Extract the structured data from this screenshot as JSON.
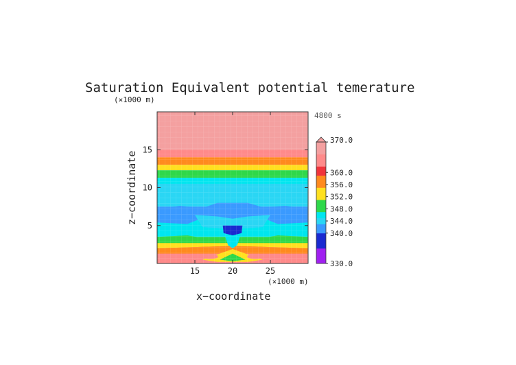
{
  "chart_data": {
    "type": "heatmap",
    "title": "Saturation Equivalent potential temerature",
    "time_label": "4800 s",
    "xlabel": "x−coordinate",
    "ylabel": "z−coordinate",
    "x_unit": "(×1000 m)",
    "z_unit": "(×1000 m)",
    "x_range": [
      10,
      30
    ],
    "z_range": [
      0,
      20
    ],
    "x_ticks": [
      15,
      20,
      25
    ],
    "z_ticks": [
      5,
      10,
      15
    ],
    "colorbar": {
      "min": 330,
      "max": 370,
      "labels": [
        "370.0",
        "360.0",
        "356.0",
        "352.0",
        "348.0",
        "344.0",
        "340.0",
        "330.0"
      ],
      "label_values": [
        370,
        360,
        356,
        352,
        348,
        344,
        340,
        330
      ],
      "extend": "max"
    },
    "field_description_layers": [
      {
        "z": [
          15.0,
          20.0
        ],
        "value": 368
      },
      {
        "z": [
          14.0,
          15.0
        ],
        "value": 362
      },
      {
        "z": [
          13.0,
          14.0
        ],
        "value": 356
      },
      {
        "z": [
          12.3,
          13.0
        ],
        "value": 351
      },
      {
        "z": [
          11.3,
          12.3
        ],
        "value": 348
      },
      {
        "z": [
          10.5,
          11.3
        ],
        "value": 346
      },
      {
        "z": [
          7.5,
          10.5
        ],
        "value": 344
      },
      {
        "z": [
          6.0,
          7.5
        ],
        "value": 342
      },
      {
        "z": [
          3.5,
          6.0
        ],
        "value": 345
      },
      {
        "z": [
          2.5,
          3.5
        ],
        "value": 349
      },
      {
        "z": [
          1.5,
          2.5
        ],
        "value": 355
      },
      {
        "z": [
          0.0,
          1.5
        ],
        "value": 362
      }
    ],
    "colors": {
      "overflow": "#f4a0a0",
      "top": "#ff8a8a",
      "red": "#f0343c",
      "orange": "#ff8a1e",
      "yellow": "#ffe020",
      "green": "#2fd84a",
      "cyan": "#00e6ef",
      "cyan_light": "#2ad6f4",
      "blue": "#3a9aff",
      "dark_blue": "#1a2ad0",
      "purple": "#a020f0"
    }
  }
}
